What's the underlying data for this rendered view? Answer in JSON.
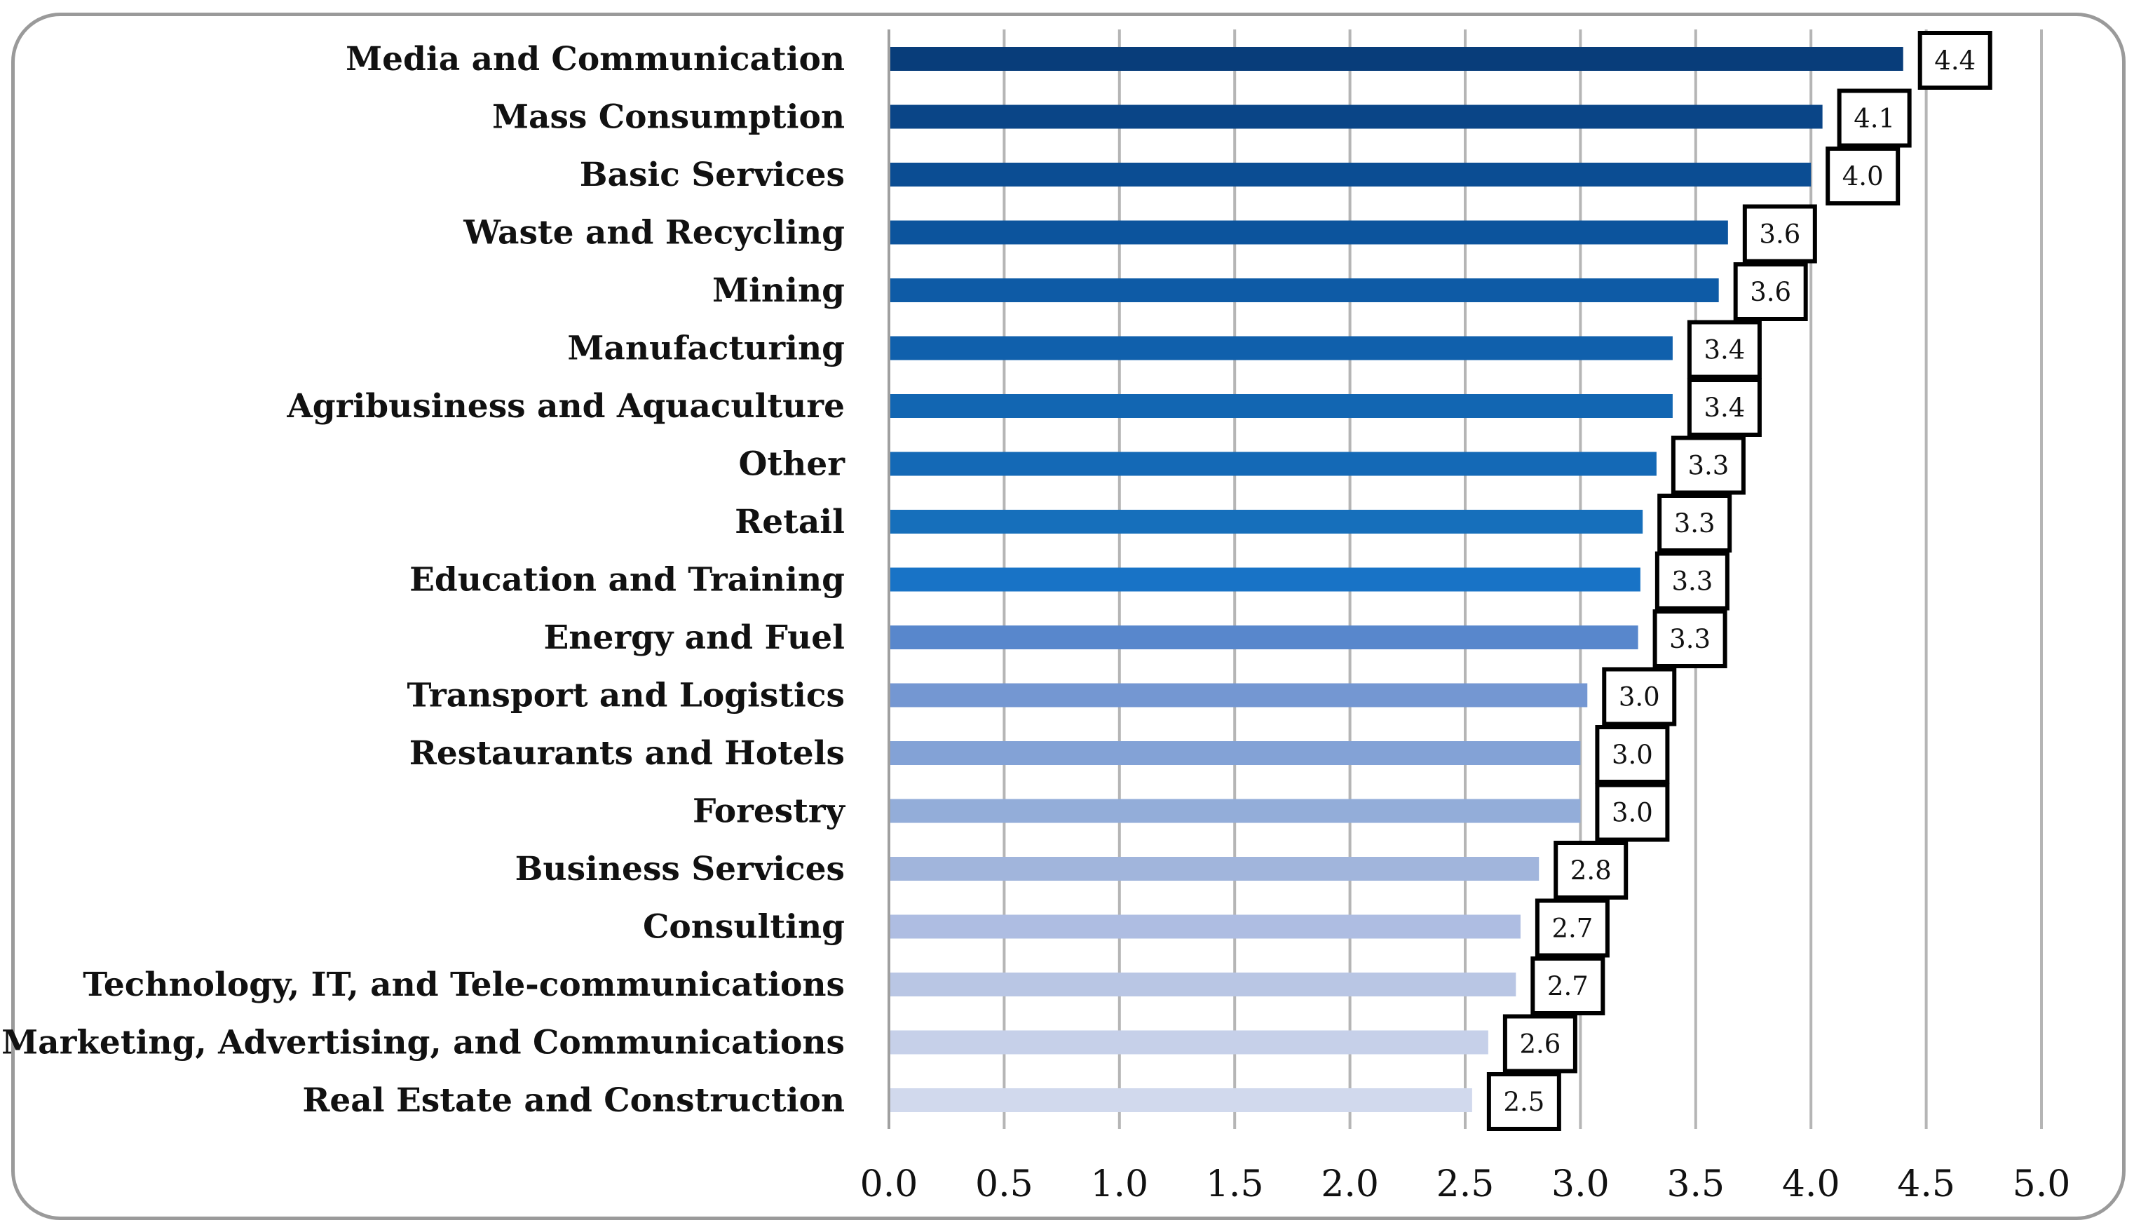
{
  "chart_data": {
    "type": "bar",
    "orientation": "horizontal",
    "title": "",
    "xlabel": "",
    "ylabel": "",
    "xlim": [
      0,
      5
    ],
    "x_ticks": [
      "0.0",
      "0.5",
      "1.0",
      "1.5",
      "2.0",
      "2.5",
      "3.0",
      "3.5",
      "4.0",
      "4.5",
      "5.0"
    ],
    "grid": "vertical",
    "categories": [
      "Media and Communication",
      "Mass Consumption",
      "Basic Services",
      "Waste and Recycling",
      "Mining",
      "Manufacturing",
      "Agribusiness and Aquaculture",
      "Other",
      "Retail",
      "Education and Training",
      "Energy and Fuel",
      "Transport and Logistics",
      "Restaurants and Hotels",
      "Forestry",
      "Business Services",
      "Consulting",
      "Technology, IT, and Tele-communications",
      "Marketing, Advertising, and Communications",
      "Real Estate and Construction"
    ],
    "values": [
      4.4,
      4.05,
      4.0,
      3.64,
      3.6,
      3.4,
      3.4,
      3.33,
      3.27,
      3.26,
      3.25,
      3.03,
      3.0,
      3.0,
      2.82,
      2.74,
      2.72,
      2.6,
      2.53
    ],
    "data_labels": [
      "4.4",
      "4.1",
      "4.0",
      "3.6",
      "3.6",
      "3.4",
      "3.4",
      "3.3",
      "3.3",
      "3.3",
      "3.3",
      "3.0",
      "3.0",
      "3.0",
      "2.8",
      "2.7",
      "2.7",
      "2.6",
      "2.5"
    ],
    "colors": [
      "#083d7a",
      "#0a4587",
      "#0b4d93",
      "#0c549d",
      "#0e5ba6",
      "#1060ac",
      "#1266b2",
      "#1469b6",
      "#166fbb",
      "#1873c6",
      "#5887cc",
      "#7497d2",
      "#83a2d6",
      "#93add9",
      "#a1b5dc",
      "#aebde2",
      "#b9c6e4",
      "#c6d0e9",
      "#d1d9ed"
    ]
  }
}
